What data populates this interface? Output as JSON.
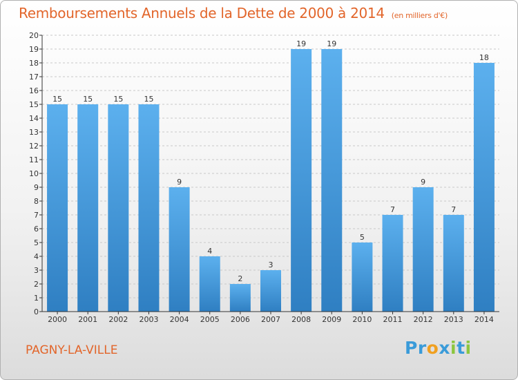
{
  "title": "Remboursements Annuels de la Dette de 2000 à 2014",
  "unit": "(en milliers d'€)",
  "commune": "PAGNY-LA-VILLE",
  "logo": {
    "text": "Proxiti",
    "letters": [
      {
        "char": "P",
        "color": "#3a9bd9"
      },
      {
        "char": "r",
        "color": "#3a9bd9"
      },
      {
        "char": "o",
        "color": "#f0a020"
      },
      {
        "char": "x",
        "color": "#3a9bd9"
      },
      {
        "char": "i",
        "color": "#8cc63f"
      },
      {
        "char": "t",
        "color": "#3a9bd9"
      },
      {
        "char": "i",
        "color": "#8cc63f"
      }
    ]
  },
  "colors": {
    "title": "#e2652a",
    "bar_top": "#5cb0ee",
    "bar_bottom": "#2f7fc2",
    "grid": "#c8c8c8",
    "axis": "#333333"
  },
  "chart_data": {
    "type": "bar",
    "categories": [
      "2000",
      "2001",
      "2002",
      "2003",
      "2004",
      "2005",
      "2006",
      "2007",
      "2008",
      "2009",
      "2010",
      "2011",
      "2012",
      "2013",
      "2014"
    ],
    "values": [
      15,
      15,
      15,
      15,
      9,
      4,
      2,
      3,
      19,
      19,
      5,
      7,
      9,
      7,
      18
    ],
    "ylim": [
      0,
      20
    ],
    "yticks": [
      0,
      1,
      2,
      3,
      4,
      5,
      6,
      7,
      8,
      9,
      10,
      11,
      12,
      13,
      14,
      15,
      16,
      17,
      18,
      19,
      20
    ],
    "grid": true,
    "data_labels": true
  }
}
